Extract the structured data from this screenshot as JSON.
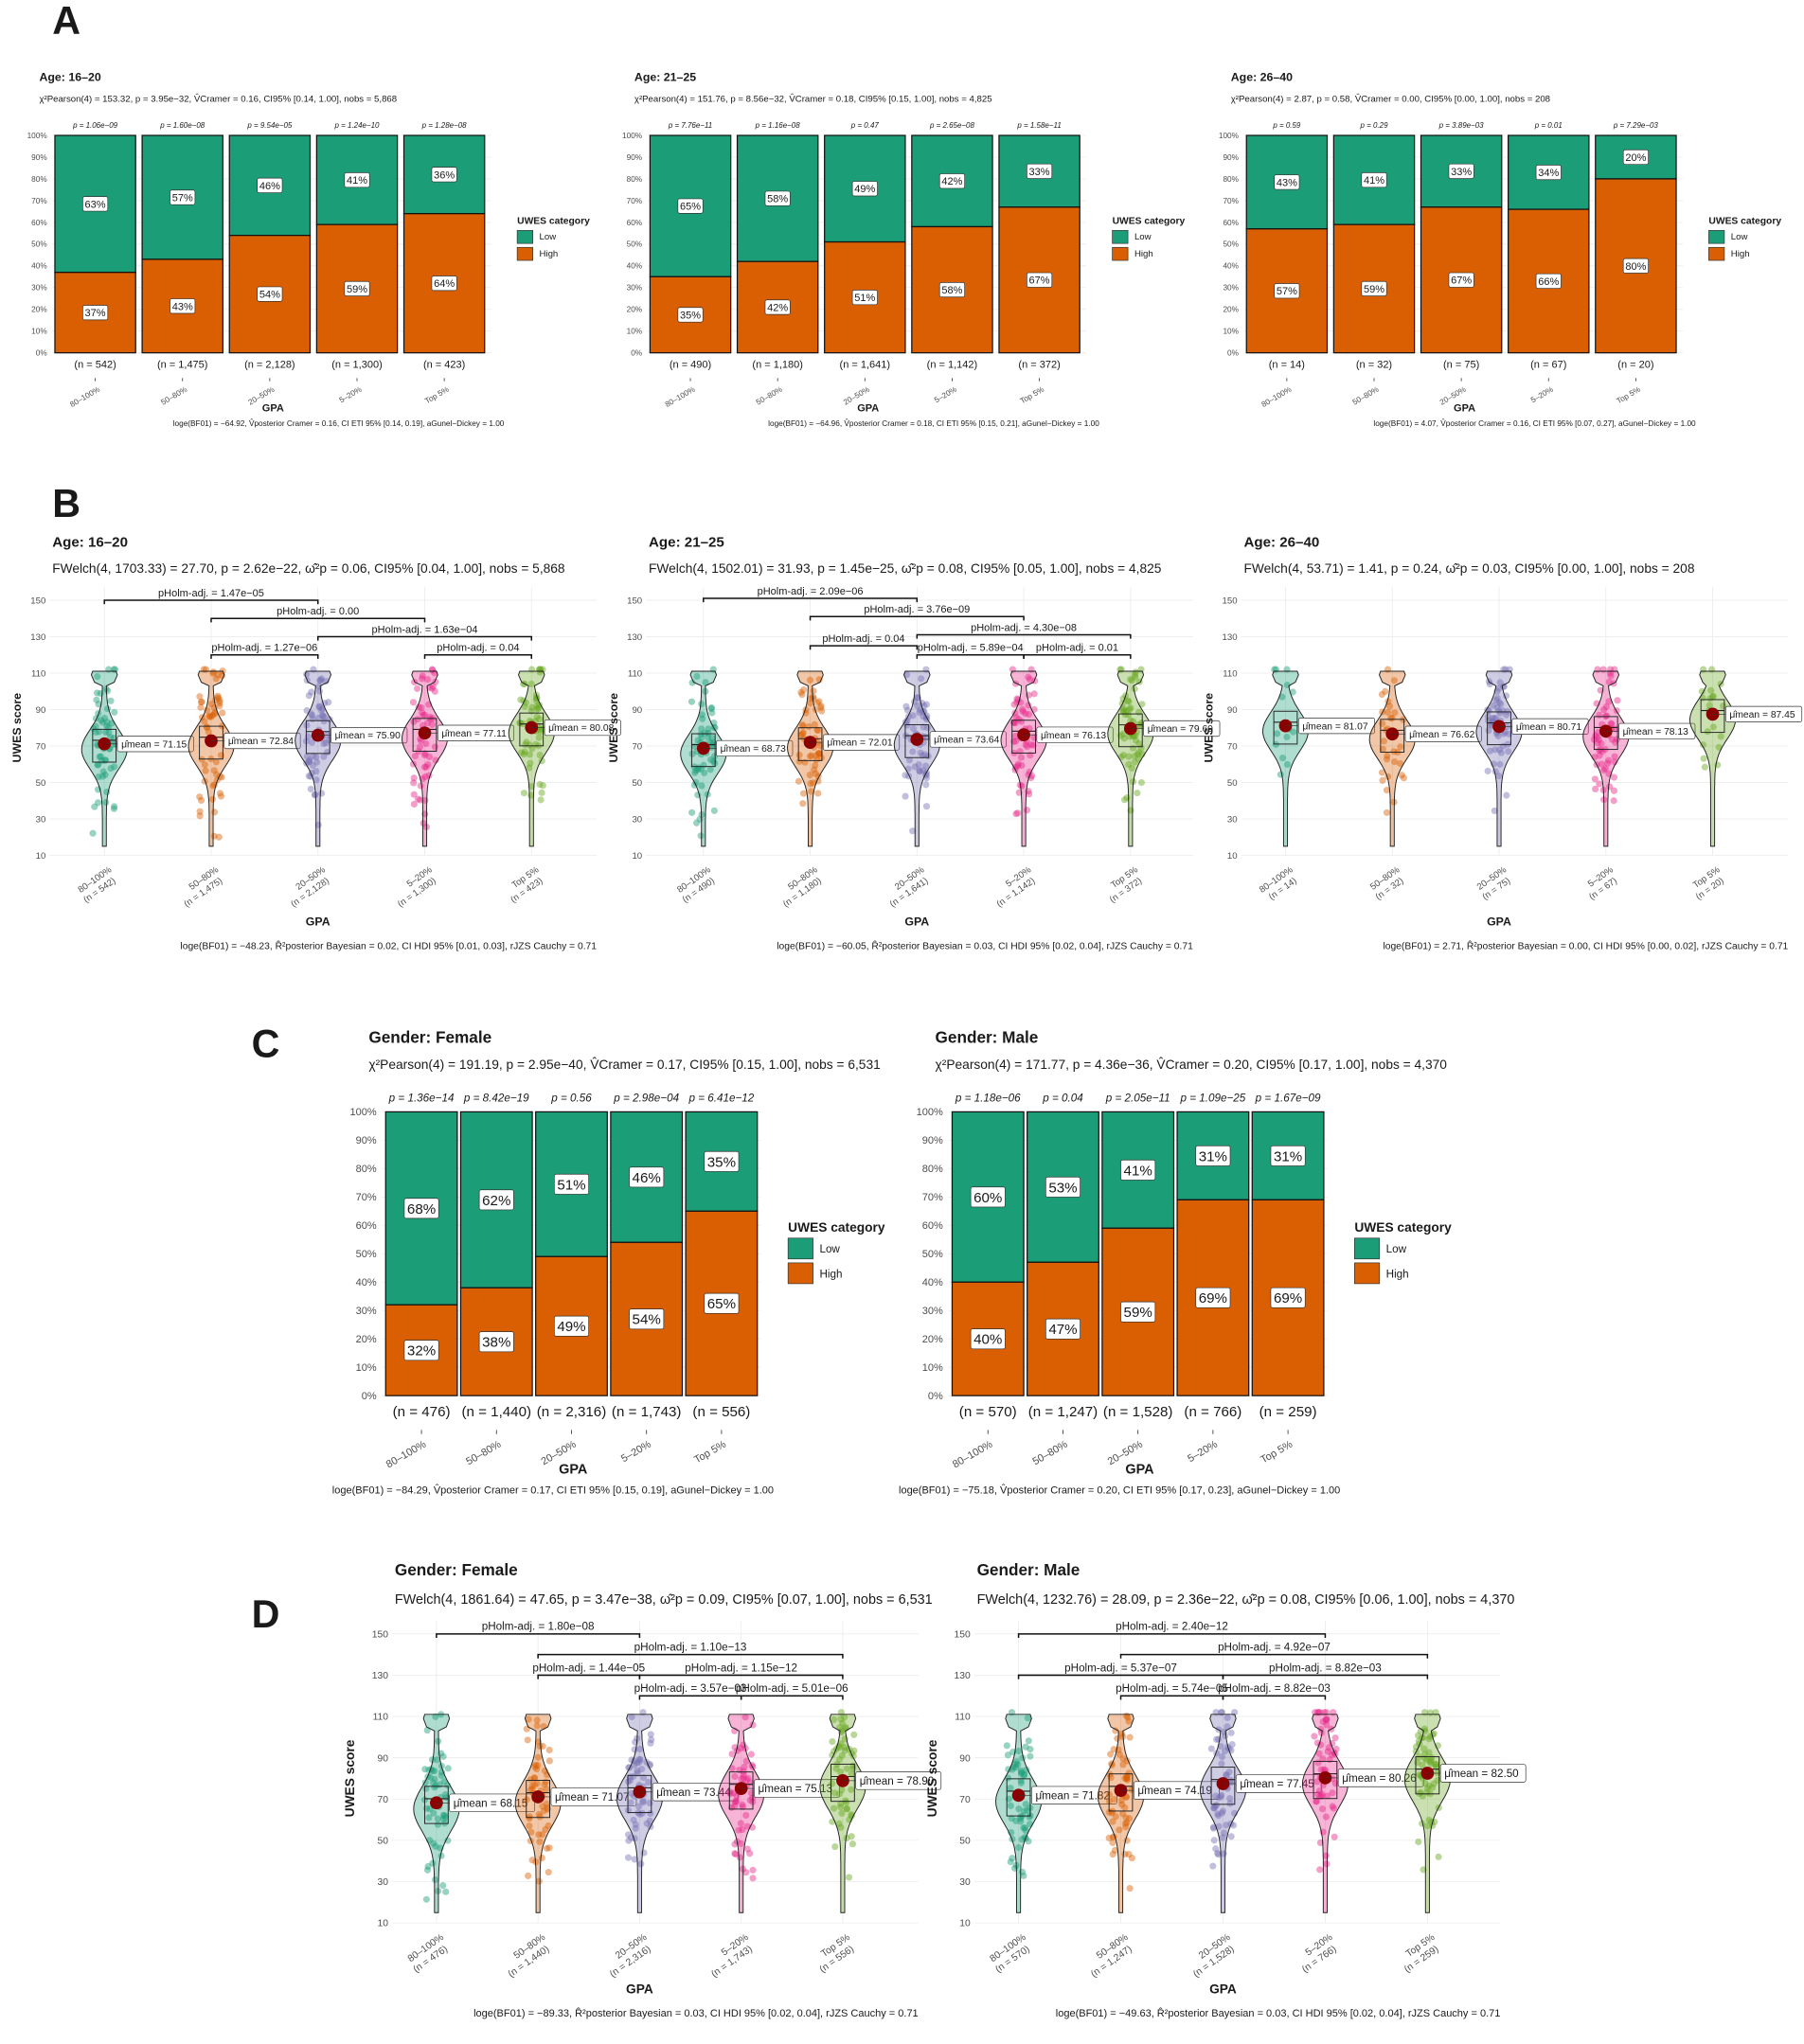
{
  "panel_letters": [
    "A",
    "B",
    "C",
    "D"
  ],
  "colors": {
    "low": "#1b9e77",
    "high": "#d95f02",
    "groups": [
      "#1b9e77",
      "#d95f02",
      "#7570b3",
      "#e7298a",
      "#66a61e"
    ],
    "mean_point": "#8b0000"
  },
  "labels": {
    "comparison_prefix": "pHolm-adj. = ",
    "mean_prefix": "μ̂mean = "
  },
  "chart_data": [
    {
      "panel": "A",
      "type": "bar",
      "stacked": true,
      "title": "Age: 16–20",
      "subtitle": "χ²Pearson(4) = 153.32, p = 3.95e−32, V̂Cramer = 0.16, CI95% [0.14, 1.00], nobs = 5,868",
      "categories": [
        "80–100%",
        "50–80%",
        "20–50%",
        "5–20%",
        "Top 5%"
      ],
      "series": [
        {
          "name": "Low",
          "values": [
            63,
            57,
            46,
            41,
            36
          ]
        },
        {
          "name": "High",
          "values": [
            37,
            43,
            54,
            59,
            64
          ]
        }
      ],
      "p_values": [
        "p = 1.06e−09",
        "p = 1.60e−08",
        "p = 9.54e−05",
        "p = 1.24e−10",
        "p = 1.28e−08"
      ],
      "n_labels": [
        "(n = 542)",
        "(n = 1,475)",
        "(n = 2,128)",
        "(n = 1,300)",
        "(n = 423)"
      ],
      "xlabel": "GPA",
      "legend_title": "UWES category",
      "yticks": [
        "0%",
        "10%",
        "20%",
        "30%",
        "40%",
        "50%",
        "60%",
        "70%",
        "80%",
        "90%",
        "100%"
      ],
      "caption": "loge(BF01) = −64.92, V̂posterior Cramer = 0.16, CI ETI 95% [0.14, 0.19], aGunel−Dickey = 1.00"
    },
    {
      "panel": "A",
      "type": "bar",
      "stacked": true,
      "title": "Age: 21–25",
      "subtitle": "χ²Pearson(4) = 151.76, p = 8.56e−32, V̂Cramer = 0.18, CI95% [0.15, 1.00], nobs = 4,825",
      "categories": [
        "80–100%",
        "50–80%",
        "20–50%",
        "5–20%",
        "Top 5%"
      ],
      "series": [
        {
          "name": "Low",
          "values": [
            65,
            58,
            49,
            42,
            33
          ]
        },
        {
          "name": "High",
          "values": [
            35,
            42,
            51,
            58,
            67
          ]
        }
      ],
      "p_values": [
        "p = 7.76e−11",
        "p = 1.16e−08",
        "p = 0.47",
        "p = 2.65e−08",
        "p = 1.58e−11"
      ],
      "n_labels": [
        "(n = 490)",
        "(n = 1,180)",
        "(n = 1,641)",
        "(n = 1,142)",
        "(n = 372)"
      ],
      "xlabel": "GPA",
      "legend_title": "UWES category",
      "yticks": [
        "0%",
        "10%",
        "20%",
        "30%",
        "40%",
        "50%",
        "60%",
        "70%",
        "80%",
        "90%",
        "100%"
      ],
      "caption": "loge(BF01) = −64.96, V̂posterior Cramer = 0.18, CI ETI 95% [0.15, 0.21], aGunel−Dickey = 1.00"
    },
    {
      "panel": "A",
      "type": "bar",
      "stacked": true,
      "title": "Age: 26–40",
      "subtitle": "χ²Pearson(4) = 2.87, p = 0.58, V̂Cramer = 0.00, CI95% [0.00, 1.00], nobs = 208",
      "categories": [
        "80–100%",
        "50–80%",
        "20–50%",
        "5–20%",
        "Top 5%"
      ],
      "series": [
        {
          "name": "Low",
          "values": [
            43,
            41,
            33,
            34,
            20
          ]
        },
        {
          "name": "High",
          "values": [
            57,
            59,
            67,
            66,
            80
          ]
        }
      ],
      "p_values": [
        "p = 0.59",
        "p = 0.29",
        "p = 3.89e−03",
        "p = 0.01",
        "p = 7.29e−03"
      ],
      "n_labels": [
        "(n = 14)",
        "(n = 32)",
        "(n = 75)",
        "(n = 67)",
        "(n = 20)"
      ],
      "xlabel": "GPA",
      "legend_title": "UWES category",
      "yticks": [
        "0%",
        "10%",
        "20%",
        "30%",
        "40%",
        "50%",
        "60%",
        "70%",
        "80%",
        "90%",
        "100%"
      ],
      "caption": "loge(BF01) = 4.07, V̂posterior Cramer = 0.16, CI ETI 95% [0.07, 0.27], aGunel−Dickey = 1.00"
    },
    {
      "panel": "B",
      "type": "violin",
      "title": "Age: 16–20",
      "subtitle": "FWelch(4, 1703.33) = 27.70, p = 2.62e−22, ω̂²p = 0.06, CI95% [0.04, 1.00], nobs = 5,868",
      "categories": [
        "80–100%",
        "50–80%",
        "20–50%",
        "5–20%",
        "Top 5%"
      ],
      "n_labels": [
        "(n = 542)",
        "(n = 1,475)",
        "(n = 2,128)",
        "(n = 1,300)",
        "(n = 423)"
      ],
      "means": [
        71.15,
        72.84,
        75.9,
        77.11,
        80.08
      ],
      "comparisons": [
        {
          "groups": [
            0,
            2
          ],
          "p": "1.47e−05"
        },
        {
          "groups": [
            1,
            3
          ],
          "p": "0.00"
        },
        {
          "groups": [
            2,
            4
          ],
          "p": "1.63e−04"
        },
        {
          "groups": [
            1,
            2
          ],
          "p": "1.27e−06"
        },
        {
          "groups": [
            3,
            4
          ],
          "p": "0.04"
        }
      ],
      "xlabel": "GPA",
      "ylabel": "UWES score",
      "ylim": [
        10,
        150
      ],
      "yticks": [
        10,
        30,
        50,
        70,
        90,
        110,
        130,
        150
      ],
      "caption": "loge(BF01) = −48.23, R̂²posterior Bayesian = 0.02, CI HDI 95% [0.01, 0.03], rJZS Cauchy = 0.71"
    },
    {
      "panel": "B",
      "type": "violin",
      "title": "Age: 21–25",
      "subtitle": "FWelch(4, 1502.01) = 31.93, p = 1.45e−25, ω̂²p = 0.08, CI95% [0.05, 1.00], nobs = 4,825",
      "categories": [
        "80–100%",
        "50–80%",
        "20–50%",
        "5–20%",
        "Top 5%"
      ],
      "n_labels": [
        "(n = 490)",
        "(n = 1,180)",
        "(n = 1,641)",
        "(n = 1,142)",
        "(n = 372)"
      ],
      "means": [
        68.73,
        72.01,
        73.64,
        76.13,
        79.6
      ],
      "comparisons": [
        {
          "groups": [
            0,
            2
          ],
          "p": "2.09e−06"
        },
        {
          "groups": [
            1,
            3
          ],
          "p": "3.76e−09"
        },
        {
          "groups": [
            2,
            4
          ],
          "p": "4.30e−08"
        },
        {
          "groups": [
            1,
            2
          ],
          "p": "0.04"
        },
        {
          "groups": [
            2,
            3
          ],
          "p": "5.89e−04"
        },
        {
          "groups": [
            3,
            4
          ],
          "p": "0.01"
        }
      ],
      "xlabel": "GPA",
      "ylabel": "UWES score",
      "ylim": [
        10,
        150
      ],
      "yticks": [
        10,
        30,
        50,
        70,
        90,
        110,
        130,
        150
      ],
      "caption": "loge(BF01) = −60.05, R̂²posterior Bayesian = 0.03, CI HDI 95% [0.02, 0.04], rJZS Cauchy = 0.71"
    },
    {
      "panel": "B",
      "type": "violin",
      "title": "Age: 26–40",
      "subtitle": "FWelch(4, 53.71) = 1.41, p = 0.24, ω̂²p = 0.03, CI95% [0.00, 1.00], nobs = 208",
      "categories": [
        "80–100%",
        "50–80%",
        "20–50%",
        "5–20%",
        "Top 5%"
      ],
      "n_labels": [
        "(n = 14)",
        "(n = 32)",
        "(n = 75)",
        "(n = 67)",
        "(n = 20)"
      ],
      "means": [
        81.07,
        76.62,
        80.71,
        78.13,
        87.45
      ],
      "comparisons": [],
      "xlabel": "GPA",
      "ylabel": "UWES score",
      "ylim": [
        10,
        150
      ],
      "yticks": [
        10,
        30,
        50,
        70,
        90,
        110,
        130,
        150
      ],
      "caption": "loge(BF01) = 2.71, R̂²posterior Bayesian = 0.00, CI HDI 95% [0.00, 0.02], rJZS Cauchy = 0.71"
    },
    {
      "panel": "C",
      "type": "bar",
      "stacked": true,
      "title": "Gender: Female",
      "subtitle": "χ²Pearson(4) = 191.19, p = 2.95e−40, V̂Cramer = 0.17, CI95% [0.15, 1.00], nobs = 6,531",
      "categories": [
        "80–100%",
        "50–80%",
        "20–50%",
        "5–20%",
        "Top 5%"
      ],
      "series": [
        {
          "name": "Low",
          "values": [
            68,
            62,
            51,
            46,
            35
          ]
        },
        {
          "name": "High",
          "values": [
            32,
            38,
            49,
            54,
            65
          ]
        }
      ],
      "p_values": [
        "p = 1.36e−14",
        "p = 8.42e−19",
        "p = 0.56",
        "p = 2.98e−04",
        "p = 6.41e−12"
      ],
      "n_labels": [
        "(n = 476)",
        "(n = 1,440)",
        "(n = 2,316)",
        "(n = 1,743)",
        "(n = 556)"
      ],
      "xlabel": "GPA",
      "legend_title": "UWES category",
      "yticks": [
        "0%",
        "10%",
        "20%",
        "30%",
        "40%",
        "50%",
        "60%",
        "70%",
        "80%",
        "90%",
        "100%"
      ],
      "caption": "loge(BF01) = −84.29, V̂posterior Cramer = 0.17, CI ETI 95% [0.15, 0.19], aGunel−Dickey = 1.00"
    },
    {
      "panel": "C",
      "type": "bar",
      "stacked": true,
      "title": "Gender: Male",
      "subtitle": "χ²Pearson(4) = 171.77, p = 4.36e−36, V̂Cramer = 0.20, CI95% [0.17, 1.00], nobs = 4,370",
      "categories": [
        "80–100%",
        "50–80%",
        "20–50%",
        "5–20%",
        "Top 5%"
      ],
      "series": [
        {
          "name": "Low",
          "values": [
            60,
            53,
            41,
            31,
            31
          ]
        },
        {
          "name": "High",
          "values": [
            40,
            47,
            59,
            69,
            69
          ]
        }
      ],
      "p_values": [
        "p = 1.18e−06",
        "p = 0.04",
        "p = 2.05e−11",
        "p = 1.09e−25",
        "p = 1.67e−09"
      ],
      "n_labels": [
        "(n = 570)",
        "(n = 1,247)",
        "(n = 1,528)",
        "(n = 766)",
        "(n = 259)"
      ],
      "xlabel": "GPA",
      "legend_title": "UWES category",
      "yticks": [
        "0%",
        "10%",
        "20%",
        "30%",
        "40%",
        "50%",
        "60%",
        "70%",
        "80%",
        "90%",
        "100%"
      ],
      "caption": "loge(BF01) = −75.18, V̂posterior Cramer = 0.20, CI ETI 95% [0.17, 0.23], aGunel−Dickey = 1.00"
    },
    {
      "panel": "D",
      "type": "violin",
      "title": "Gender: Female",
      "subtitle": "FWelch(4, 1861.64) = 47.65, p = 3.47e−38, ω̂²p = 0.09, CI95% [0.07, 1.00], nobs = 6,531",
      "categories": [
        "80–100%",
        "50–80%",
        "20–50%",
        "5–20%",
        "Top 5%"
      ],
      "n_labels": [
        "(n = 476)",
        "(n = 1,440)",
        "(n = 2,316)",
        "(n = 1,743)",
        "(n = 556)"
      ],
      "means": [
        68.15,
        71.07,
        73.44,
        75.13,
        78.9
      ],
      "comparisons": [
        {
          "groups": [
            0,
            2
          ],
          "p": "1.80e−08"
        },
        {
          "groups": [
            1,
            4
          ],
          "p": "1.10e−13"
        },
        {
          "groups": [
            1,
            2
          ],
          "p": "1.44e−05"
        },
        {
          "groups": [
            2,
            4
          ],
          "p": "1.15e−12"
        },
        {
          "groups": [
            2,
            3
          ],
          "p": "3.57e−03"
        },
        {
          "groups": [
            3,
            4
          ],
          "p": "5.01e−06"
        }
      ],
      "xlabel": "GPA",
      "ylabel": "UWES score",
      "ylim": [
        10,
        150
      ],
      "yticks": [
        10,
        30,
        50,
        70,
        90,
        110,
        130,
        150
      ],
      "caption": "loge(BF01) = −89.33, R̂²posterior Bayesian = 0.03, CI HDI 95% [0.02, 0.04], rJZS Cauchy = 0.71"
    },
    {
      "panel": "D",
      "type": "violin",
      "title": "Gender: Male",
      "subtitle": "FWelch(4, 1232.76) = 28.09, p = 2.36e−22, ω̂²p = 0.08, CI95% [0.06, 1.00], nobs = 4,370",
      "categories": [
        "80–100%",
        "50–80%",
        "20–50%",
        "5–20%",
        "Top 5%"
      ],
      "n_labels": [
        "(n = 570)",
        "(n = 1,247)",
        "(n = 1,528)",
        "(n = 766)",
        "(n = 259)"
      ],
      "means": [
        71.82,
        74.19,
        77.45,
        80.26,
        82.5
      ],
      "comparisons": [
        {
          "groups": [
            0,
            3
          ],
          "p": "2.40e−12"
        },
        {
          "groups": [
            1,
            4
          ],
          "p": "4.92e−07"
        },
        {
          "groups": [
            0,
            2
          ],
          "p": "5.37e−07"
        },
        {
          "groups": [
            2,
            4
          ],
          "p": "8.82e−03"
        },
        {
          "groups": [
            1,
            2
          ],
          "p": "5.74e−05"
        },
        {
          "groups": [
            2,
            3
          ],
          "p": "8.82e−03"
        }
      ],
      "xlabel": "GPA",
      "ylabel": "UWES score",
      "ylim": [
        10,
        150
      ],
      "yticks": [
        10,
        30,
        50,
        70,
        90,
        110,
        130,
        150
      ],
      "caption": "loge(BF01) = −49.63, R̂²posterior Bayesian = 0.03, CI HDI 95% [0.02, 0.04], rJZS Cauchy = 0.71"
    }
  ]
}
